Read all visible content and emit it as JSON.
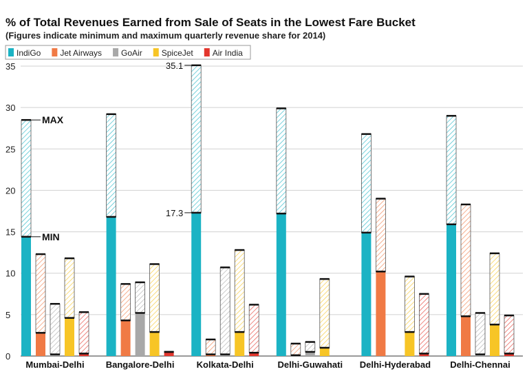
{
  "chart_data": {
    "type": "range-bar",
    "title": "% of Total Revenues Earned from Sale of Seats in the Lowest Fare Bucket",
    "subtitle": "(Figures indicate minimum and maximum quarterly revenue share for 2014)",
    "categories": [
      "Mumbai-Delhi",
      "Bangalore-Delhi",
      "Kolkata-Delhi",
      "Delhi-Guwahati",
      "Delhi-Hyderabad",
      "Delhi-Chennai"
    ],
    "series": [
      {
        "name": "IndiGo",
        "color": "#1bb3c4",
        "min": [
          14.4,
          16.8,
          17.3,
          17.2,
          14.9,
          15.9
        ],
        "max": [
          28.5,
          29.2,
          35.1,
          29.9,
          26.8,
          29.0
        ]
      },
      {
        "name": "Jet Airways",
        "color": "#f07a45",
        "min": [
          2.8,
          4.3,
          0.2,
          0.1,
          10.2,
          4.8
        ],
        "max": [
          12.3,
          8.7,
          2.0,
          1.5,
          19.0,
          18.3
        ]
      },
      {
        "name": "GoAir",
        "color": "#a8a8a8",
        "min": [
          0.2,
          5.2,
          0.2,
          0.5,
          null,
          0.2
        ],
        "max": [
          6.3,
          8.9,
          10.7,
          1.7,
          null,
          5.2
        ]
      },
      {
        "name": "SpiceJet",
        "color": "#f7c526",
        "min": [
          4.6,
          2.9,
          2.9,
          1.0,
          2.9,
          3.8
        ],
        "max": [
          11.8,
          11.1,
          12.8,
          9.3,
          9.6,
          12.4
        ]
      },
      {
        "name": "Air India",
        "color": "#e3362d",
        "min": [
          0.3,
          0.5,
          0.4,
          null,
          0.3,
          0.3
        ],
        "max": [
          5.3,
          0.5,
          6.2,
          null,
          7.5,
          4.9
        ]
      }
    ],
    "annotations": [
      "MAX",
      "MIN"
    ],
    "ylim": [
      0,
      35.5
    ],
    "yticks": [
      0,
      5,
      10,
      15,
      20,
      25,
      30,
      35
    ],
    "grid": true
  }
}
